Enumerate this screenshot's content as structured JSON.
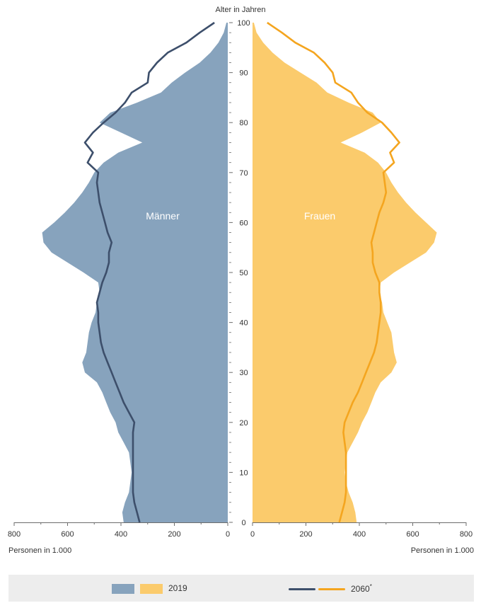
{
  "chart_data": {
    "type": "area",
    "title": "",
    "y_axis_title": "Alter in Jahren",
    "x_axis_title_left": "Personen in 1.000",
    "x_axis_title_right": "Personen in 1.000",
    "left_label": "Männer",
    "right_label": "Frauen",
    "age_ticks": [
      0,
      10,
      20,
      30,
      40,
      50,
      60,
      70,
      80,
      90,
      100
    ],
    "value_ticks": [
      800,
      600,
      400,
      200,
      0
    ],
    "value_ticks_right": [
      0,
      200,
      400,
      600,
      800
    ],
    "xlim": [
      0,
      800
    ],
    "ylim": [
      0,
      100
    ],
    "ages": [
      0,
      2,
      4,
      6,
      8,
      10,
      12,
      14,
      16,
      18,
      20,
      22,
      24,
      26,
      28,
      30,
      32,
      34,
      36,
      38,
      40,
      42,
      44,
      46,
      48,
      50,
      52,
      54,
      56,
      58,
      60,
      62,
      64,
      66,
      68,
      70,
      72,
      74,
      76,
      78,
      80,
      82,
      84,
      86,
      88,
      90,
      92,
      94,
      96,
      98,
      100
    ],
    "series": [
      {
        "name": "2019",
        "men": [
          390,
          395,
          385,
          370,
          365,
          360,
          365,
          370,
          390,
          410,
          420,
          440,
          455,
          470,
          490,
          535,
          545,
          530,
          525,
          520,
          510,
          495,
          490,
          480,
          485,
          540,
          600,
          660,
          690,
          695,
          650,
          610,
          575,
          545,
          520,
          500,
          465,
          410,
          320,
          400,
          480,
          440,
          340,
          250,
          210,
          160,
          105,
          65,
          35,
          15,
          5
        ],
        "women": [
          390,
          385,
          375,
          360,
          350,
          345,
          350,
          355,
          375,
          395,
          410,
          430,
          445,
          460,
          480,
          520,
          540,
          530,
          525,
          520,
          505,
          490,
          485,
          475,
          480,
          530,
          590,
          650,
          680,
          690,
          650,
          610,
          575,
          545,
          520,
          500,
          470,
          420,
          330,
          410,
          480,
          450,
          360,
          280,
          240,
          180,
          120,
          75,
          40,
          15,
          5
        ]
      },
      {
        "name": "2060*",
        "men": [
          330,
          340,
          350,
          355,
          355,
          355,
          355,
          355,
          355,
          355,
          350,
          370,
          390,
          405,
          420,
          435,
          450,
          465,
          475,
          480,
          485,
          485,
          490,
          480,
          470,
          455,
          445,
          445,
          435,
          450,
          460,
          470,
          480,
          485,
          490,
          485,
          525,
          505,
          535,
          505,
          465,
          420,
          385,
          360,
          300,
          295,
          265,
          225,
          155,
          105,
          50
        ],
        "women": [
          325,
          335,
          345,
          350,
          350,
          350,
          350,
          350,
          345,
          340,
          345,
          360,
          375,
          395,
          410,
          425,
          440,
          455,
          465,
          470,
          475,
          480,
          480,
          475,
          475,
          460,
          450,
          450,
          445,
          455,
          465,
          475,
          490,
          500,
          495,
          490,
          530,
          515,
          550,
          520,
          485,
          430,
          395,
          370,
          310,
          300,
          270,
          230,
          160,
          110,
          55
        ]
      }
    ],
    "colors": {
      "men_2019": "#87a3bd",
      "women_2019": "#fbcb6c",
      "men_2060": "#3d4f6b",
      "women_2060": "#f4a51f",
      "axis": "#6d6d6d"
    }
  },
  "legend": {
    "label_2019": "2019",
    "label_2060": "2060",
    "label_2060_mark": "*"
  }
}
